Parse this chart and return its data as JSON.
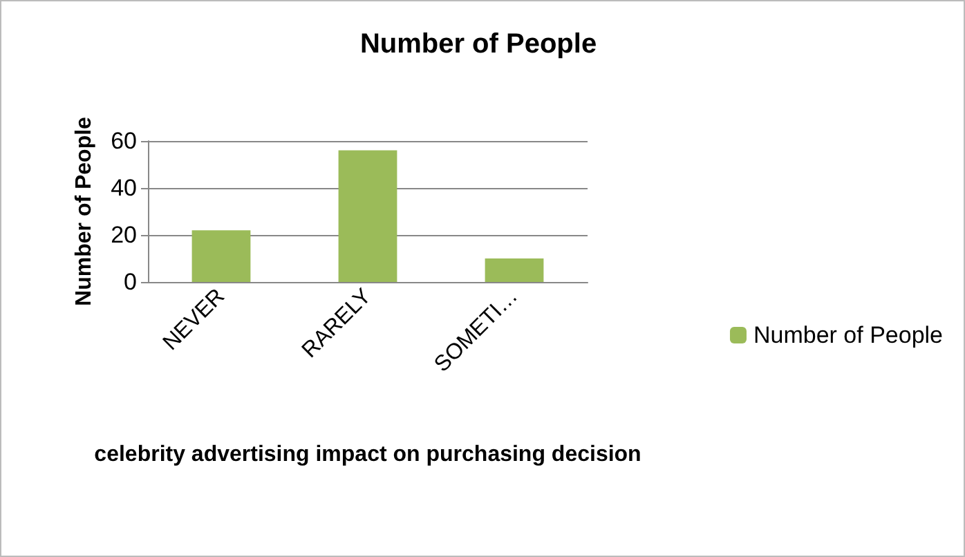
{
  "chart_data": {
    "type": "bar",
    "title": "Number of People",
    "xlabel": "celebrity advertising impact on purchasing decision",
    "ylabel": "Number of People",
    "categories": [
      "NEVER",
      "RARELY",
      "SOMETI…"
    ],
    "series": [
      {
        "name": "Number of People",
        "color": "#9bbb59",
        "values": [
          22,
          56,
          10
        ]
      }
    ],
    "ylim": [
      0,
      60
    ],
    "yticks": [
      0,
      20,
      40,
      60
    ],
    "grid": "y",
    "legend": "right"
  }
}
